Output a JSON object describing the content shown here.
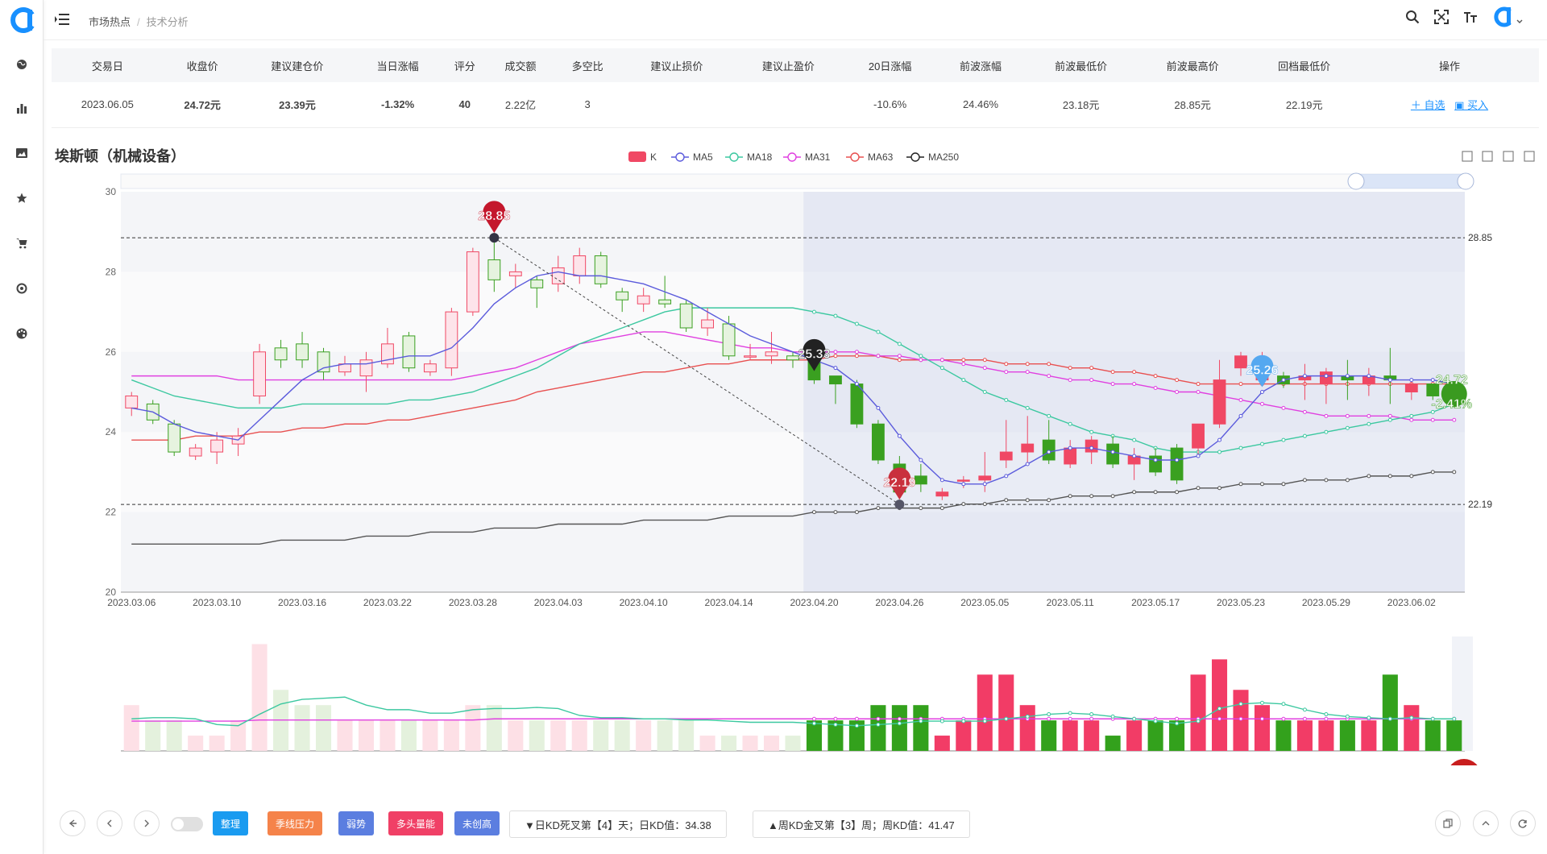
{
  "header": {
    "breadcrumb": [
      "市场热点",
      "技术分析"
    ]
  },
  "table": {
    "columns": [
      "交易日",
      "收盘价",
      "建议建仓价",
      "当日涨幅",
      "评分",
      "成交额",
      "多空比",
      "建议止损价",
      "建议止盈价",
      "20日涨幅",
      "前波涨幅",
      "前波最低价",
      "前波最高价",
      "回档最低价",
      "操作"
    ],
    "row": {
      "date": "2023.06.05",
      "close": "24.72元",
      "build_price": "23.39元",
      "day_change": "-1.32%",
      "score": "40",
      "turnover": "2.22亿",
      "long_short": "3",
      "stop_loss": "",
      "take_profit": "",
      "change_20d": "-10.6%",
      "prev_wave_change": "24.46%",
      "prev_wave_low": "23.18元",
      "prev_wave_high": "28.85元",
      "pullback_low": "22.19元",
      "action_add": "自选",
      "action_buy": "买入"
    }
  },
  "chart_title": "埃斯顿（机械设备）",
  "chart_data": {
    "type": "candlestick",
    "legend": [
      "K",
      "MA5",
      "MA18",
      "MA31",
      "MA63",
      "MA250"
    ],
    "colors": {
      "up": "#f04864",
      "down": "#3aa020",
      "ma5": "#5b5bdc",
      "ma18": "#3cc8a0",
      "ma31": "#e040e0",
      "ma63": "#e85050",
      "ma250": "#555555"
    },
    "ylim": [
      20,
      30
    ],
    "yticks": [
      "30",
      "28",
      "26",
      "24",
      "22",
      "20"
    ],
    "x_tick_labels": [
      "2023.03.06",
      "2023.03.10",
      "2023.03.16",
      "2023.03.22",
      "2023.03.28",
      "2023.04.03",
      "2023.04.10",
      "2023.04.14",
      "2023.04.20",
      "2023.04.26",
      "2023.05.05",
      "2023.05.11",
      "2023.05.17",
      "2023.05.23",
      "2023.05.29",
      "2023.06.02"
    ],
    "candles": [
      [
        24.6,
        24.9,
        24.4,
        25.0
      ],
      [
        24.7,
        24.3,
        24.2,
        24.8
      ],
      [
        24.2,
        23.5,
        23.4,
        24.3
      ],
      [
        23.4,
        23.6,
        23.3,
        23.7
      ],
      [
        23.5,
        23.8,
        23.2,
        24.0
      ],
      [
        23.7,
        23.9,
        23.4,
        24.1
      ],
      [
        24.9,
        26.0,
        24.7,
        26.2
      ],
      [
        26.1,
        25.8,
        25.6,
        26.3
      ],
      [
        26.2,
        25.8,
        25.6,
        26.5
      ],
      [
        26.0,
        25.5,
        25.3,
        26.1
      ],
      [
        25.5,
        25.7,
        25.4,
        25.9
      ],
      [
        25.4,
        25.8,
        25.0,
        26.0
      ],
      [
        25.7,
        26.2,
        25.6,
        26.6
      ],
      [
        26.4,
        25.6,
        25.5,
        26.5
      ],
      [
        25.5,
        25.7,
        25.4,
        25.8
      ],
      [
        25.6,
        27.0,
        25.4,
        27.1
      ],
      [
        27.0,
        28.5,
        26.9,
        28.6
      ],
      [
        28.3,
        27.8,
        27.5,
        28.9
      ],
      [
        27.9,
        28.0,
        27.6,
        28.2
      ],
      [
        27.8,
        27.6,
        27.1,
        27.9
      ],
      [
        27.7,
        28.1,
        27.5,
        28.4
      ],
      [
        27.9,
        28.4,
        27.7,
        28.6
      ],
      [
        28.4,
        27.7,
        27.6,
        28.5
      ],
      [
        27.5,
        27.3,
        27.0,
        27.6
      ],
      [
        27.2,
        27.4,
        27.0,
        27.6
      ],
      [
        27.3,
        27.2,
        27.1,
        27.9
      ],
      [
        27.2,
        26.6,
        26.5,
        27.3
      ],
      [
        26.6,
        26.8,
        26.4,
        27.1
      ],
      [
        26.7,
        25.9,
        25.8,
        26.9
      ],
      [
        25.9,
        25.9,
        25.8,
        26.2
      ],
      [
        25.9,
        26.0,
        25.7,
        26.5
      ],
      [
        25.9,
        25.8,
        25.6,
        26.0
      ],
      [
        25.8,
        25.3,
        25.2,
        26.0
      ],
      [
        25.4,
        25.2,
        24.7,
        25.4
      ],
      [
        25.2,
        24.2,
        24.1,
        25.3
      ],
      [
        24.2,
        23.3,
        23.2,
        24.3
      ],
      [
        23.2,
        22.5,
        22.4,
        23.4
      ],
      [
        22.9,
        22.7,
        22.5,
        23.2
      ],
      [
        22.4,
        22.5,
        22.3,
        22.6
      ],
      [
        22.8,
        22.8,
        22.6,
        22.9
      ],
      [
        22.8,
        22.9,
        22.5,
        23.5
      ],
      [
        23.3,
        23.5,
        23.1,
        24.3
      ],
      [
        23.5,
        23.7,
        23.2,
        24.4
      ],
      [
        23.8,
        23.3,
        23.2,
        24.3
      ],
      [
        23.2,
        23.6,
        23.1,
        23.8
      ],
      [
        23.5,
        23.8,
        23.2,
        23.9
      ],
      [
        23.7,
        23.2,
        23.1,
        23.9
      ],
      [
        23.2,
        23.4,
        22.8,
        23.6
      ],
      [
        23.4,
        23.0,
        22.9,
        23.6
      ],
      [
        23.6,
        22.8,
        22.7,
        23.7
      ],
      [
        23.6,
        24.2,
        23.4,
        24.2
      ],
      [
        24.2,
        25.3,
        24.1,
        25.8
      ],
      [
        25.6,
        25.9,
        25.4,
        26.0
      ],
      [
        25.3,
        25.7,
        25.2,
        26.0
      ],
      [
        25.4,
        25.2,
        25.1,
        25.5
      ],
      [
        25.3,
        25.4,
        24.8,
        25.7
      ],
      [
        25.2,
        25.5,
        24.7,
        25.6
      ],
      [
        25.4,
        25.3,
        24.8,
        25.8
      ],
      [
        25.2,
        25.4,
        24.9,
        25.6
      ],
      [
        25.4,
        25.3,
        24.7,
        26.1
      ],
      [
        25.0,
        25.2,
        24.8,
        25.3
      ],
      [
        25.2,
        24.9,
        24.8,
        25.2
      ],
      [
        24.9,
        24.7,
        24.6,
        25.0
      ]
    ],
    "ma5": [
      24.6,
      24.5,
      24.2,
      24.0,
      23.9,
      23.8,
      24.3,
      24.8,
      25.3,
      25.6,
      25.7,
      25.7,
      25.8,
      25.9,
      25.9,
      26.1,
      26.6,
      27.2,
      27.6,
      27.9,
      28.0,
      27.9,
      27.9,
      27.8,
      27.7,
      27.5,
      27.3,
      27.0,
      26.7,
      26.4,
      26.2,
      26.0,
      25.8,
      25.6,
      25.2,
      24.6,
      23.9,
      23.3,
      22.8,
      22.7,
      22.7,
      22.9,
      23.2,
      23.5,
      23.6,
      23.6,
      23.5,
      23.4,
      23.3,
      23.3,
      23.4,
      23.8,
      24.4,
      25.0,
      25.3,
      25.4,
      25.4,
      25.4,
      25.4,
      25.3,
      25.3,
      25.3,
      25.2
    ],
    "ma18": [
      25.3,
      25.1,
      24.9,
      24.8,
      24.7,
      24.6,
      24.6,
      24.6,
      24.7,
      24.7,
      24.7,
      24.7,
      24.7,
      24.8,
      24.8,
      24.9,
      25.0,
      25.2,
      25.4,
      25.6,
      25.9,
      26.2,
      26.4,
      26.6,
      26.8,
      27.0,
      27.1,
      27.1,
      27.1,
      27.1,
      27.1,
      27.1,
      27.0,
      26.9,
      26.7,
      26.5,
      26.2,
      25.9,
      25.6,
      25.3,
      25.0,
      24.8,
      24.6,
      24.4,
      24.2,
      24.0,
      23.9,
      23.8,
      23.6,
      23.5,
      23.5,
      23.5,
      23.6,
      23.7,
      23.8,
      23.9,
      24.0,
      24.1,
      24.2,
      24.3,
      24.4,
      24.5,
      24.7
    ],
    "ma31": [
      25.4,
      25.4,
      25.4,
      25.4,
      25.4,
      25.3,
      25.3,
      25.3,
      25.3,
      25.3,
      25.3,
      25.3,
      25.3,
      25.3,
      25.3,
      25.3,
      25.4,
      25.5,
      25.6,
      25.8,
      26.0,
      26.2,
      26.3,
      26.4,
      26.5,
      26.5,
      26.4,
      26.3,
      26.2,
      26.1,
      26.1,
      26.0,
      26.0,
      26.0,
      26.0,
      25.9,
      25.9,
      25.8,
      25.8,
      25.7,
      25.6,
      25.5,
      25.5,
      25.4,
      25.3,
      25.3,
      25.2,
      25.2,
      25.1,
      25.0,
      25.0,
      24.9,
      24.8,
      24.7,
      24.6,
      24.5,
      24.4,
      24.4,
      24.4,
      24.4,
      24.3,
      24.3,
      24.3
    ],
    "ma63": [
      23.8,
      23.8,
      23.8,
      23.9,
      23.9,
      23.9,
      24.0,
      24.0,
      24.1,
      24.1,
      24.2,
      24.2,
      24.3,
      24.3,
      24.4,
      24.5,
      24.6,
      24.7,
      24.8,
      25.0,
      25.1,
      25.2,
      25.3,
      25.4,
      25.5,
      25.5,
      25.6,
      25.7,
      25.7,
      25.8,
      25.8,
      25.8,
      25.8,
      25.9,
      25.9,
      25.9,
      25.8,
      25.8,
      25.8,
      25.8,
      25.8,
      25.7,
      25.7,
      25.7,
      25.6,
      25.6,
      25.5,
      25.5,
      25.4,
      25.3,
      25.2,
      25.2,
      25.2,
      25.2,
      25.2,
      25.2,
      25.2,
      25.2,
      25.2,
      25.2,
      25.2,
      25.2,
      25.2
    ],
    "ma250": [
      21.2,
      21.2,
      21.2,
      21.2,
      21.2,
      21.2,
      21.2,
      21.3,
      21.3,
      21.3,
      21.3,
      21.4,
      21.4,
      21.4,
      21.5,
      21.5,
      21.5,
      21.6,
      21.6,
      21.6,
      21.7,
      21.7,
      21.7,
      21.7,
      21.8,
      21.8,
      21.8,
      21.8,
      21.9,
      21.9,
      21.9,
      21.9,
      22.0,
      22.0,
      22.0,
      22.1,
      22.1,
      22.1,
      22.1,
      22.2,
      22.2,
      22.3,
      22.3,
      22.3,
      22.4,
      22.4,
      22.4,
      22.5,
      22.5,
      22.5,
      22.6,
      22.6,
      22.7,
      22.7,
      22.7,
      22.8,
      22.8,
      22.8,
      22.9,
      22.9,
      22.9,
      23.0,
      23.0
    ],
    "volume": [
      3,
      2,
      2,
      1,
      1,
      2,
      7,
      4,
      3,
      3,
      2,
      2,
      2,
      2,
      2,
      2,
      3,
      3,
      2,
      2,
      2,
      2,
      2,
      2,
      2,
      2,
      2,
      1,
      1,
      1,
      1,
      1,
      2,
      2,
      2,
      3,
      3,
      3,
      1,
      2,
      5,
      5,
      3,
      2,
      2,
      2,
      1,
      2,
      2,
      2,
      5,
      6,
      4,
      3,
      2,
      2,
      2,
      2,
      2,
      5,
      3,
      2,
      2
    ],
    "vol_line_a": [
      0.28,
      0.29,
      0.29,
      0.28,
      0.23,
      0.22,
      0.32,
      0.41,
      0.45,
      0.46,
      0.47,
      0.4,
      0.36,
      0.36,
      0.33,
      0.33,
      0.36,
      0.37,
      0.37,
      0.38,
      0.37,
      0.31,
      0.29,
      0.29,
      0.28,
      0.28,
      0.27,
      0.27,
      0.26,
      0.25,
      0.25,
      0.25,
      0.24,
      0.23,
      0.22,
      0.23,
      0.24,
      0.26,
      0.26,
      0.26,
      0.26,
      0.28,
      0.3,
      0.32,
      0.33,
      0.32,
      0.3,
      0.28,
      0.26,
      0.24,
      0.26,
      0.37,
      0.41,
      0.42,
      0.41,
      0.36,
      0.32,
      0.3,
      0.29,
      0.28,
      0.29,
      0.28,
      0.28
    ],
    "vol_line_b": [
      0.26,
      0.26,
      0.26,
      0.26,
      0.26,
      0.26,
      0.27,
      0.27,
      0.27,
      0.27,
      0.27,
      0.27,
      0.27,
      0.27,
      0.27,
      0.27,
      0.27,
      0.28,
      0.28,
      0.28,
      0.28,
      0.28,
      0.28,
      0.28,
      0.28,
      0.28,
      0.28,
      0.28,
      0.28,
      0.28,
      0.28,
      0.28,
      0.28,
      0.28,
      0.28,
      0.28,
      0.28,
      0.28,
      0.28,
      0.28,
      0.28,
      0.28,
      0.28,
      0.28,
      0.28,
      0.28,
      0.28,
      0.28,
      0.28,
      0.28,
      0.28,
      0.28,
      0.28,
      0.28,
      0.28,
      0.28,
      0.28,
      0.28,
      0.28,
      0.28,
      0.28,
      0.28,
      0.28
    ],
    "hlines": [
      "28.85",
      "22.19"
    ],
    "markers": {
      "high": "28.85",
      "low": "22.19",
      "mid": "25.33",
      "recent": "25.26",
      "last_price": "24.72",
      "last_pct": "-2.41%"
    }
  },
  "bottom": {
    "tags": [
      {
        "label": "整理",
        "color": "#1a9bf0"
      },
      {
        "label": "季线压力",
        "color": "#f5834a"
      },
      {
        "label": "弱势",
        "color": "#5b7ee0"
      },
      {
        "label": "多头量能",
        "color": "#f04066"
      },
      {
        "label": "未创高",
        "color": "#5b7ee0"
      }
    ],
    "info1": "▼日KD死叉第【4】天；日KD值：34.38",
    "info2": "▲周KD金叉第【3】周；周KD值：41.47"
  }
}
